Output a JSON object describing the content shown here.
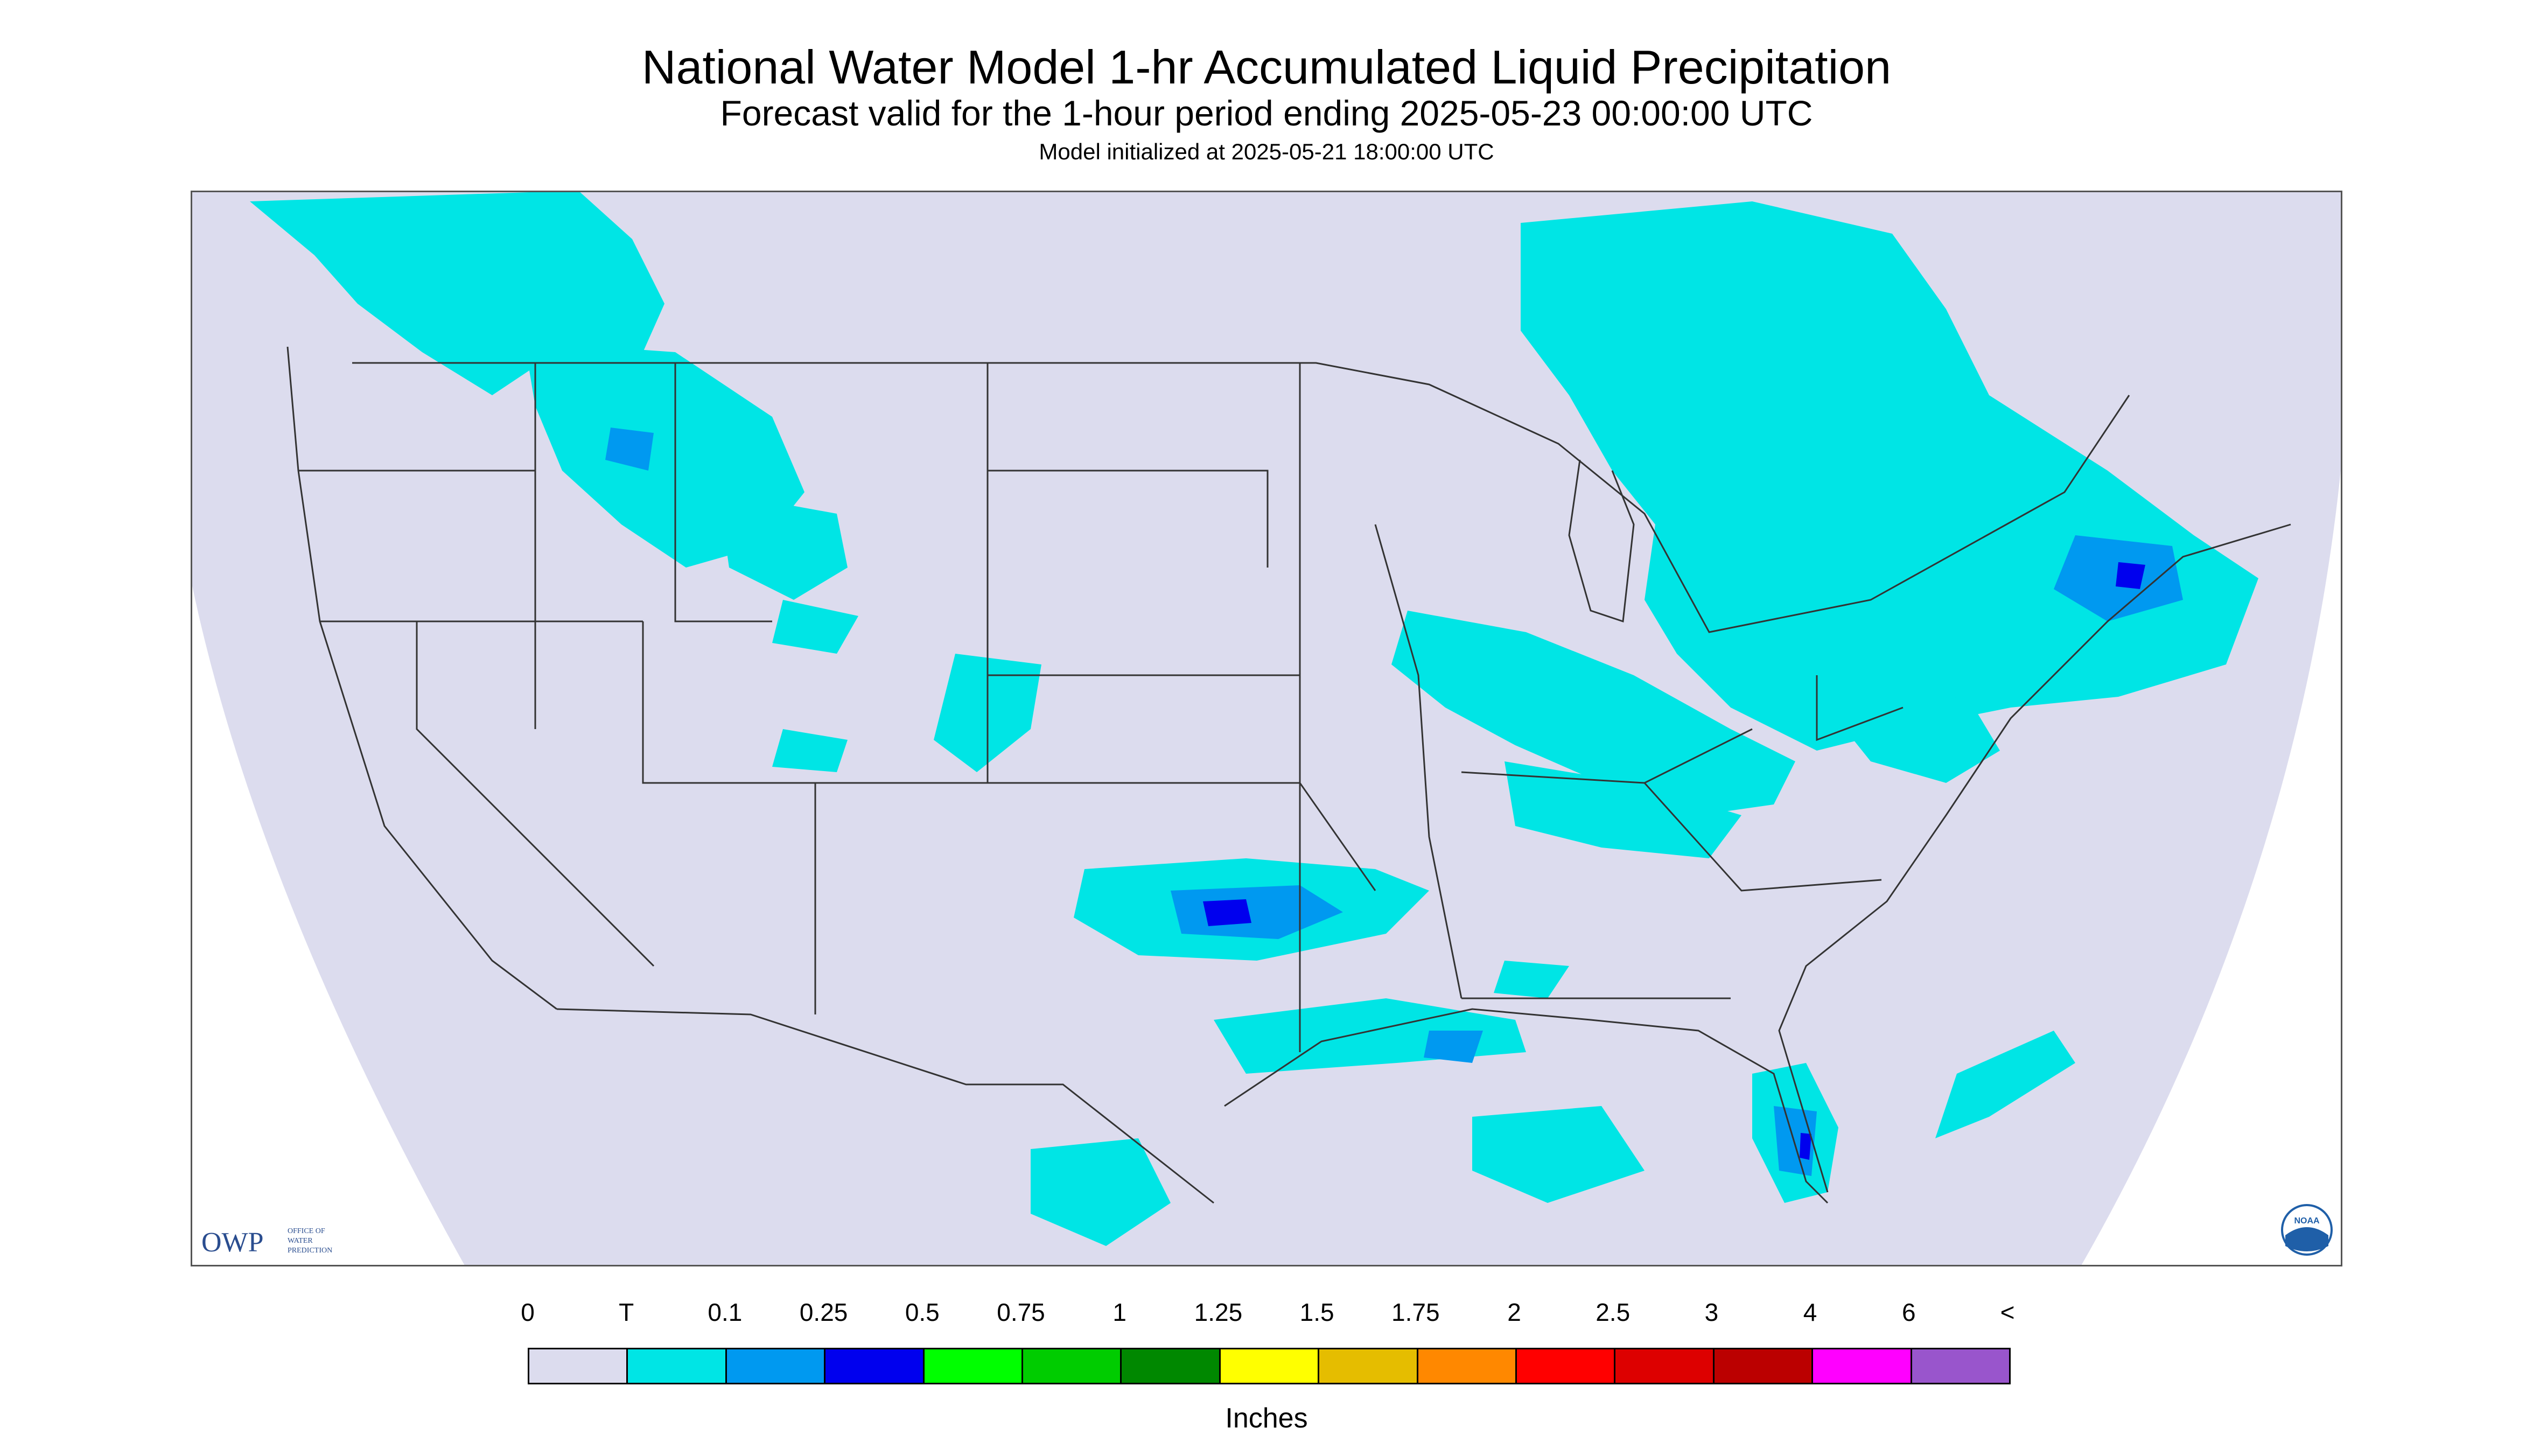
{
  "title": "National Water Model 1-hr Accumulated Liquid Precipitation",
  "subtitle": "Forecast valid for the 1-hour period ending 2025-05-23 00:00:00 UTC",
  "init_line": "Model initialized at 2025-05-21 18:00:00 UTC",
  "logo": {
    "org_abbrev": "OWP",
    "org_name": "OFFICE OF WATER PREDICTION",
    "noaa_text": "NOAA"
  },
  "legend": {
    "units": "Inches",
    "labels": [
      "0",
      "T",
      "0.1",
      "0.25",
      "0.5",
      "0.75",
      "1",
      "1.25",
      "1.5",
      "1.75",
      "2",
      "2.5",
      "3",
      "4",
      "6",
      "<"
    ],
    "colors": [
      "#dcdcee",
      "#00e5e5",
      "#0099f0",
      "#0000ee",
      "#00ff00",
      "#00cc00",
      "#008800",
      "#ffff00",
      "#e5bd00",
      "#ff8800",
      "#ff0000",
      "#dd0000",
      "#bb0000",
      "#ff00ff",
      "#9955cc"
    ]
  },
  "colors": {
    "map_background": "#dcdcee",
    "outside_domain": "#ffffff",
    "precip_trace": "#00e5e5",
    "precip_light": "#0099f0",
    "precip_moderate": "#0000ee",
    "boundary_line": "#333333"
  }
}
